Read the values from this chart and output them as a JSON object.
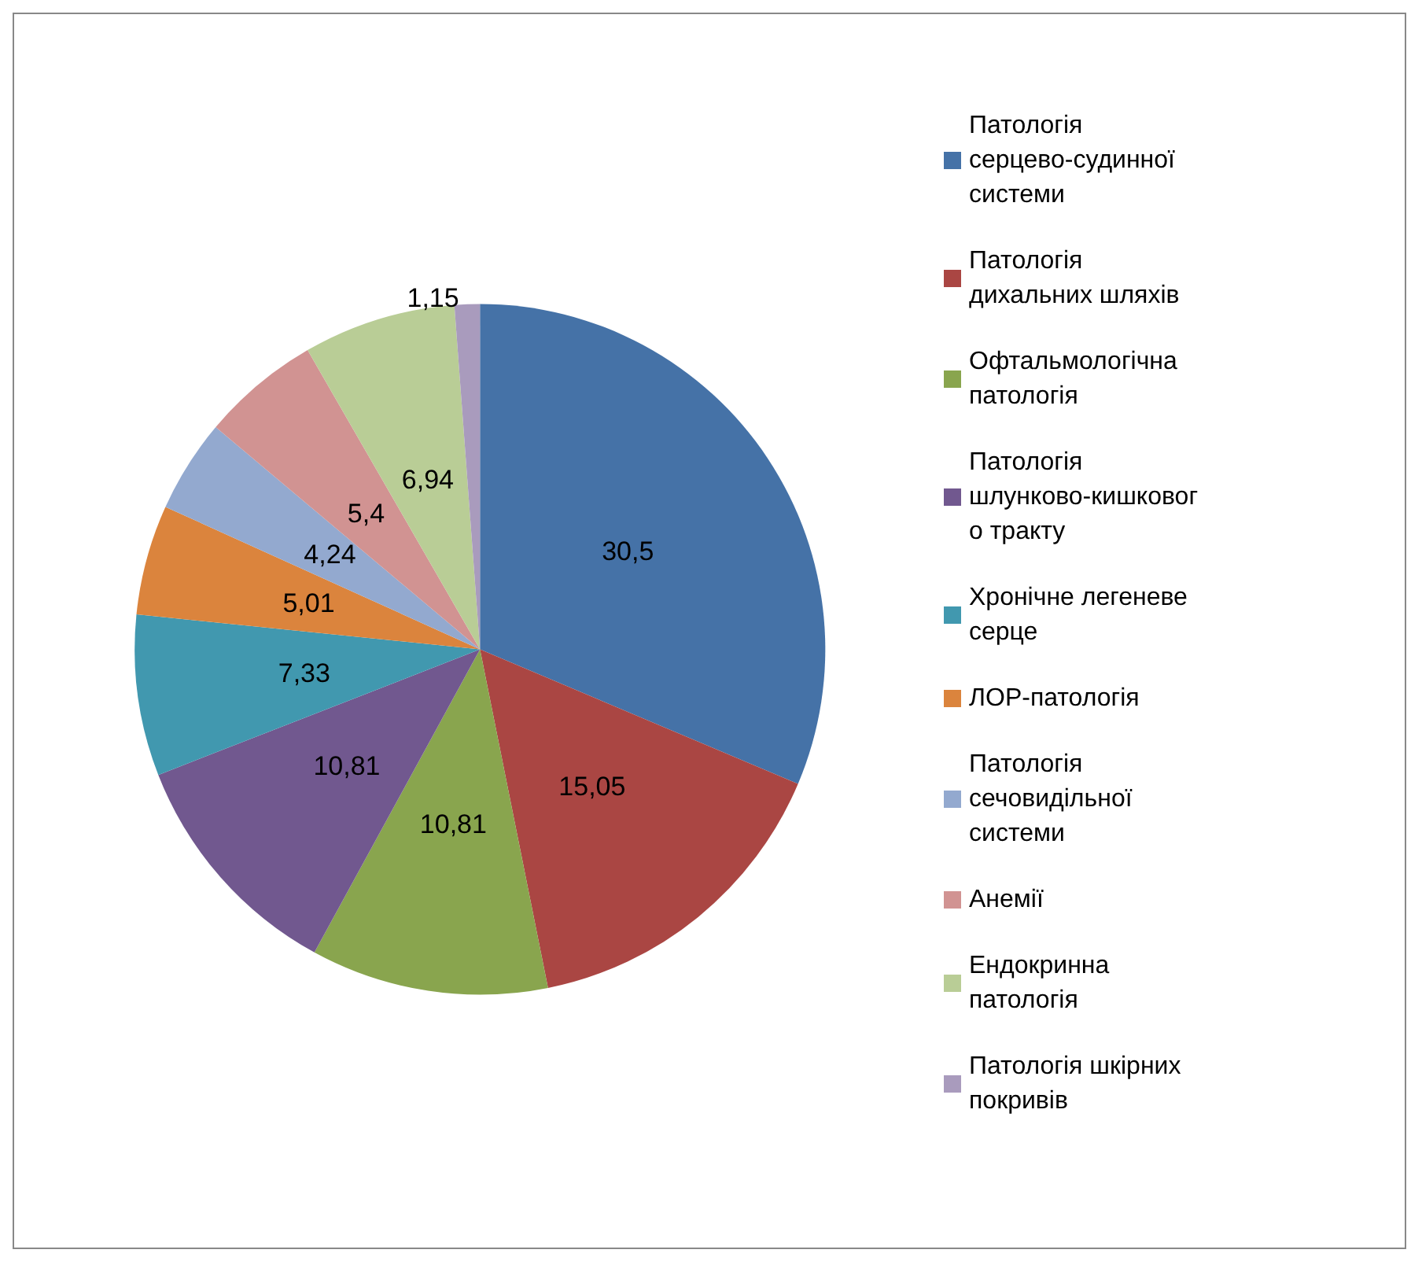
{
  "chart_data": {
    "type": "pie",
    "categories": [
      "Патологія серцево-судинної системи",
      "Патологія дихальних шляхів",
      "Офтальмологічна патологія",
      "Патологія шлунково-кишкового тракту",
      "Хронічне легеневе серце",
      "ЛОР-патологія",
      "Патологія сечовидільної системи",
      "Анемії",
      "Ендокринна патологія",
      "Патологія шкірних покривів"
    ],
    "values": [
      30.5,
      15.05,
      10.81,
      10.81,
      7.33,
      5.01,
      4.24,
      5.4,
      6.94,
      1.15
    ],
    "value_labels": [
      "30,5",
      "15,05",
      "10,81",
      "10,81",
      "7,33",
      "5,01",
      "4,24",
      "5,4",
      "6,94",
      "1,15"
    ],
    "colors": [
      "#4572a7",
      "#aa4643",
      "#89a54e",
      "#71588f",
      "#4198af",
      "#db843d",
      "#93a9cf",
      "#d19392",
      "#b9cd96",
      "#a99bbd"
    ],
    "legend": "right"
  }
}
